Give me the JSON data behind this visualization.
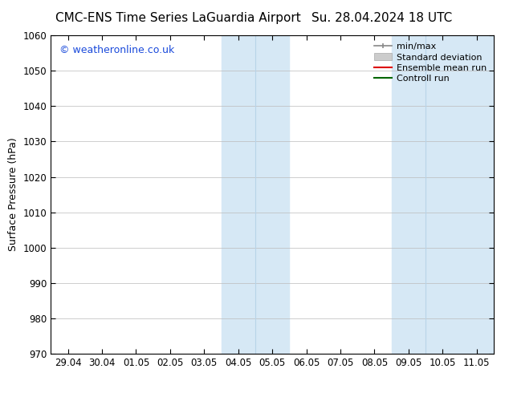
{
  "title_left": "CMC-ENS Time Series LaGuardia Airport",
  "title_right": "Su. 28.04.2024 18 UTC",
  "ylabel": "Surface Pressure (hPa)",
  "ylim": [
    970,
    1060
  ],
  "yticks": [
    970,
    980,
    990,
    1000,
    1010,
    1020,
    1030,
    1040,
    1050,
    1060
  ],
  "xtick_labels": [
    "29.04",
    "30.04",
    "01.05",
    "02.05",
    "03.05",
    "04.05",
    "05.05",
    "06.05",
    "07.05",
    "08.05",
    "09.05",
    "10.05",
    "11.05"
  ],
  "watermark": "© weatheronline.co.uk",
  "watermark_color": "#1a4adb",
  "background_color": "#ffffff",
  "plot_bg_color": "#ffffff",
  "shaded_bands": [
    {
      "xstart": 4.5,
      "xend": 5.0,
      "color": "#d6e8f5"
    },
    {
      "xstart": 5.0,
      "xend": 5.5,
      "color": "#daeaf7"
    },
    {
      "xstart": 5.5,
      "xend": 6.5,
      "color": "#d6e8f5"
    },
    {
      "xstart": 9.5,
      "xend": 10.0,
      "color": "#d6e8f5"
    },
    {
      "xstart": 10.0,
      "xend": 10.5,
      "color": "#daeaf7"
    },
    {
      "xstart": 10.5,
      "xend": 11.5,
      "color": "#d6e8f5"
    }
  ],
  "title_fontsize": 11,
  "tick_fontsize": 8.5,
  "ylabel_fontsize": 9
}
